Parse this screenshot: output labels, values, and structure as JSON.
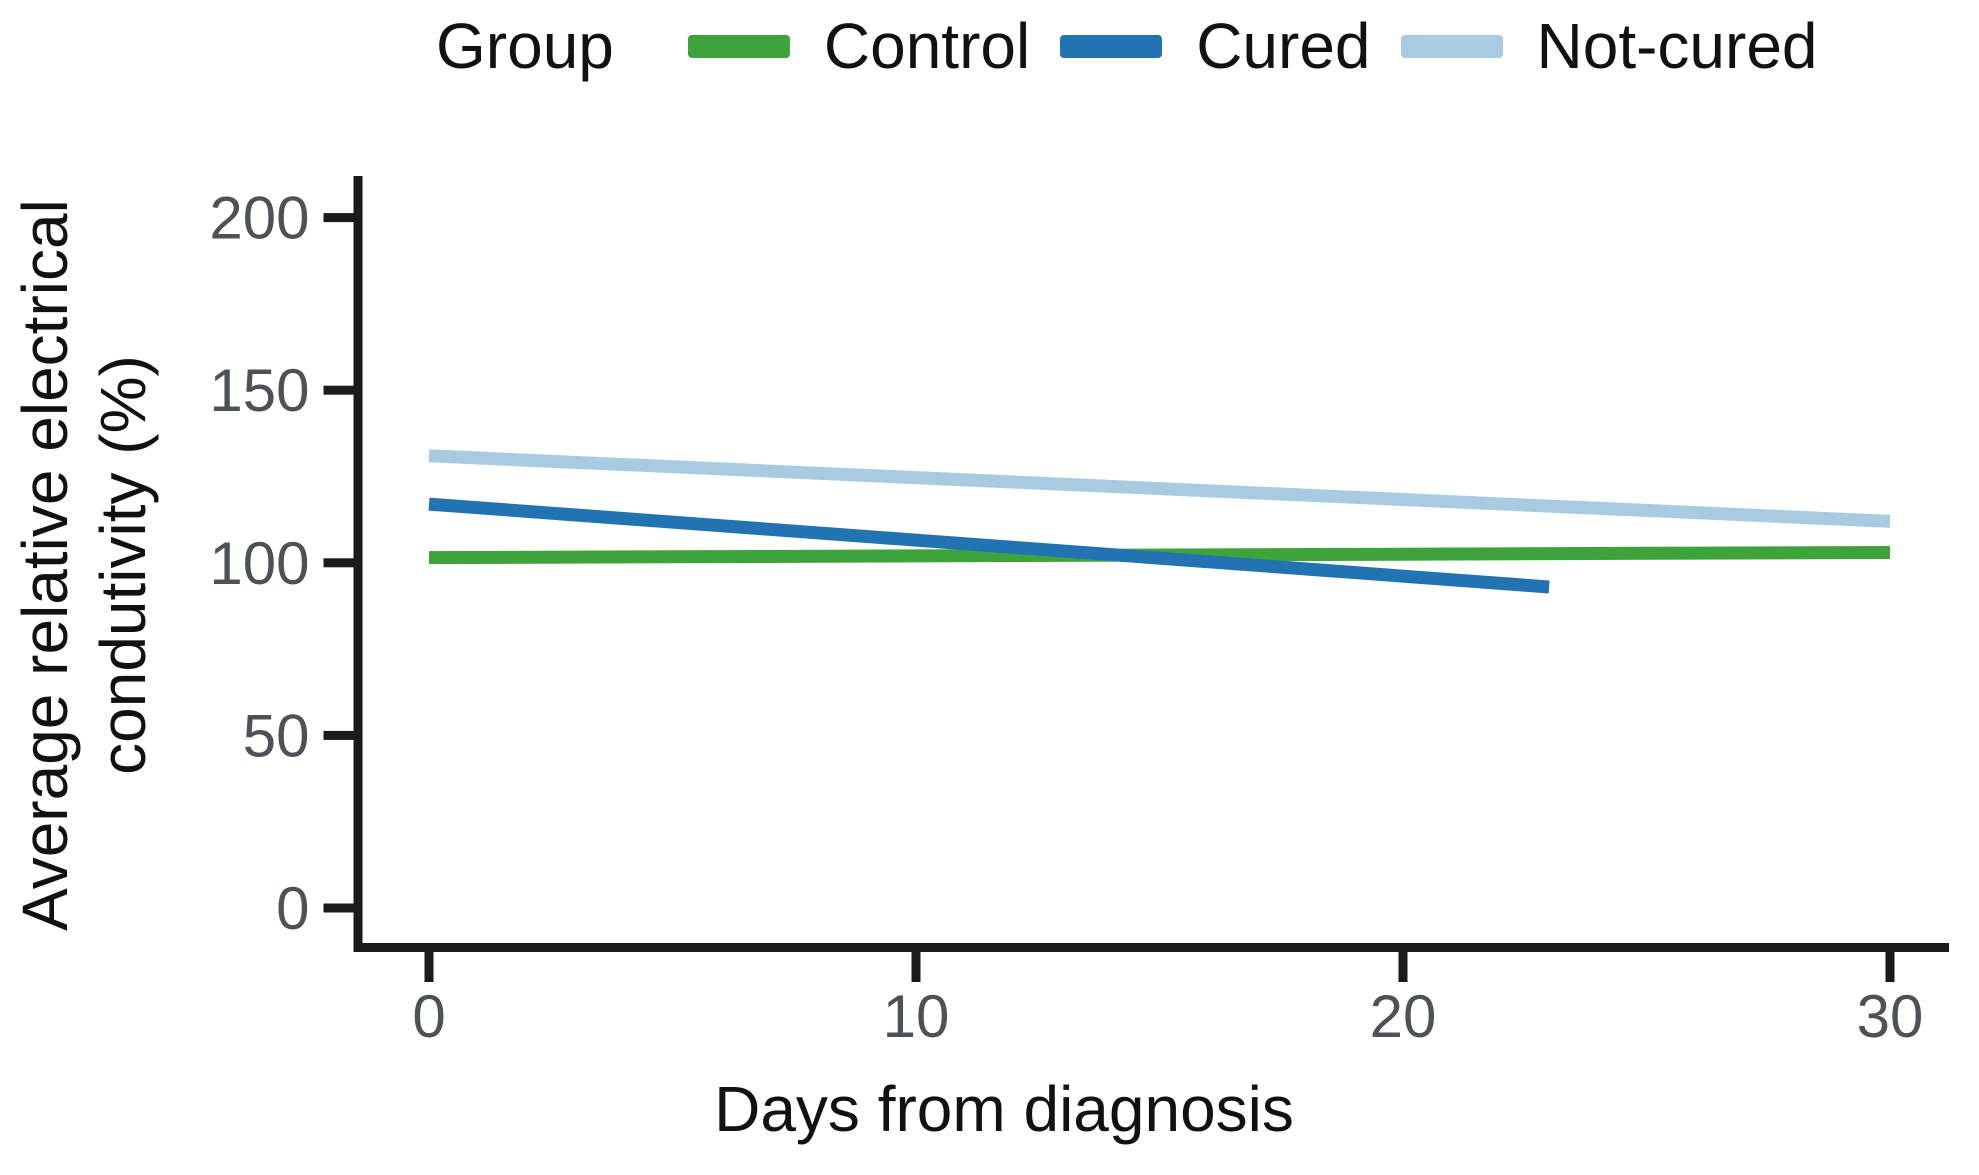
{
  "figure": {
    "legend_title": "Group",
    "x_axis_title": "Days from diagnosis",
    "y_axis_title_line1": "Average relative electrical",
    "y_axis_title_line2": "condutivity (%)"
  },
  "colors": {
    "control": "#3fa33c",
    "cured": "#2273b2",
    "not_cured": "#a9cbe2",
    "axis": "#1b1b1b",
    "tick_label": "#4c5257",
    "title_text": "#111111",
    "background": "#ffffff"
  },
  "chart_data": {
    "type": "line",
    "title": "",
    "xlabel": "Days from diagnosis",
    "ylabel": "Average relative electrical condutivity (%)",
    "legend_title": "Group",
    "legend_position": "top",
    "grid": false,
    "xlim": [
      0,
      30
    ],
    "ylim": [
      0,
      200
    ],
    "x_ticks": [
      0,
      10,
      20,
      30
    ],
    "y_ticks": [
      0,
      50,
      100,
      150,
      200
    ],
    "series": [
      {
        "name": "Control",
        "color": "#3fa33c",
        "points": [
          [
            0,
            101.5
          ],
          [
            30,
            103
          ]
        ]
      },
      {
        "name": "Cured",
        "color": "#2273b2",
        "points": [
          [
            0,
            117
          ],
          [
            23,
            93
          ]
        ]
      },
      {
        "name": "Not-cured",
        "color": "#a9cbe2",
        "points": [
          [
            0,
            131
          ],
          [
            30,
            112
          ]
        ]
      }
    ]
  }
}
